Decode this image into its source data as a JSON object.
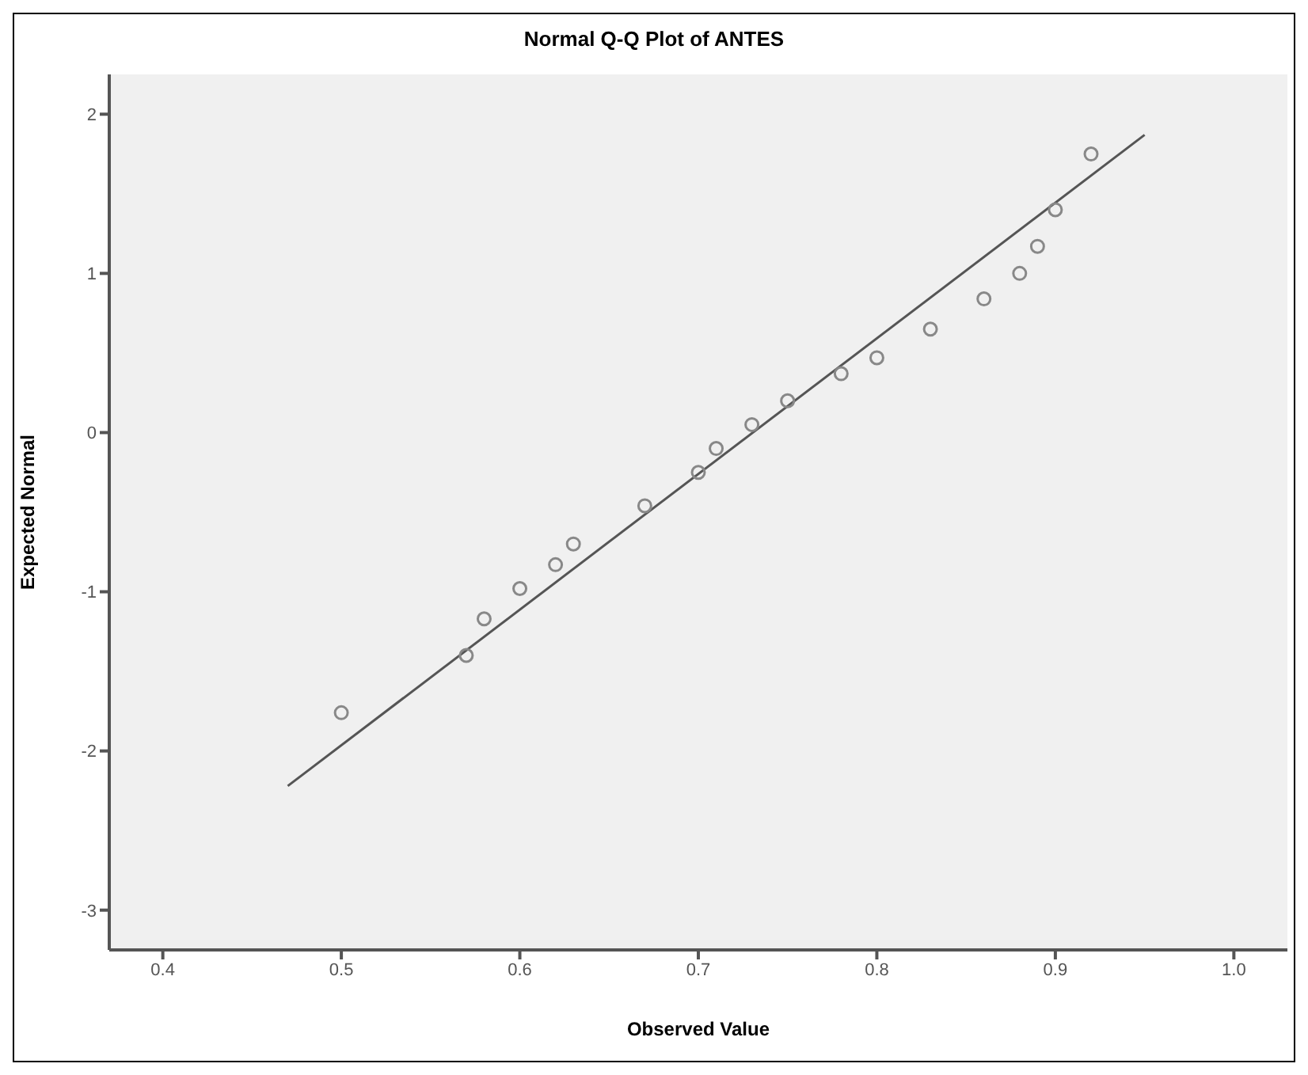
{
  "chart_data": {
    "type": "scatter",
    "title": "Normal Q-Q Plot of ANTES",
    "xlabel": "Observed Value",
    "ylabel": "Expected Normal",
    "xlim": [
      0.37,
      1.03
    ],
    "xticks": [
      0.4,
      0.5,
      0.6,
      0.7,
      0.8,
      0.9,
      {
        "value": 1,
        "label": "1.0"
      }
    ],
    "ylim": [
      -3.25,
      2.25
    ],
    "yticks": [
      -3,
      -2,
      -1,
      0,
      1,
      2
    ],
    "grid": false,
    "legend": false,
    "series": [
      {
        "marker": "circle",
        "color": "#888888",
        "x": [
          0.5,
          0.57,
          0.58,
          0.6,
          0.62,
          0.63,
          0.67,
          0.7,
          0.71,
          0.73,
          0.75,
          0.78,
          0.8,
          0.83,
          0.86,
          0.88,
          0.89,
          0.9,
          0.92
        ],
        "values": [
          -1.76,
          -1.4,
          -1.17,
          -0.98,
          -0.83,
          -0.7,
          -0.46,
          -0.25,
          -0.1,
          0.05,
          0.2,
          0.37,
          0.47,
          0.65,
          0.84,
          1.0,
          1.17,
          1.4,
          1.75
        ]
      },
      {
        "type": "line",
        "marker": "none",
        "color": "#555555",
        "x": [
          0.47,
          0.95
        ],
        "values": [
          -2.22,
          1.87
        ]
      }
    ]
  }
}
